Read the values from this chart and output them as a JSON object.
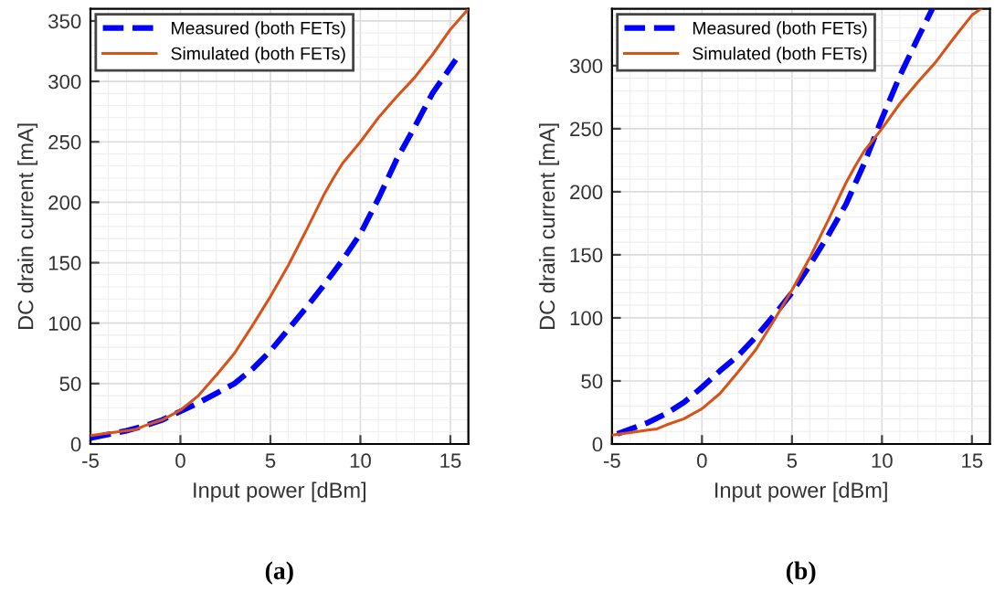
{
  "chart_data": [
    {
      "type": "line",
      "xlabel": "Input power [dBm]",
      "ylabel": "DC drain current [mA]",
      "annotations": [
        "(a)"
      ],
      "xlim": [
        -5,
        16
      ],
      "xticks": [
        -5,
        0,
        5,
        10,
        15
      ],
      "ylim": [
        0,
        360
      ],
      "yticks": [
        0,
        50,
        100,
        150,
        200,
        250,
        300,
        350
      ],
      "grid": true,
      "legend": "top left",
      "marker": "none",
      "series": [
        {
          "name": "Measured (both FETs)",
          "color": "#0000ff",
          "line_style": "dashed",
          "x": [
            -5,
            -4,
            -3,
            -2,
            -1,
            0,
            1,
            2,
            3,
            4,
            5,
            6,
            7,
            8,
            9,
            10,
            11,
            12,
            13,
            14,
            15.3
          ],
          "values": [
            5,
            8,
            11,
            15,
            20,
            27,
            34,
            42,
            50,
            62,
            77,
            95,
            113,
            132,
            152,
            174,
            203,
            235,
            262,
            290,
            318
          ]
        },
        {
          "name": "Simulated (both FETs)",
          "color": "#d95319",
          "line_style": "solid",
          "x": [
            -5,
            -4,
            -3,
            -2.5,
            -2,
            -1,
            0,
            1,
            2,
            3,
            4,
            5,
            6,
            7,
            8,
            8.5,
            9,
            10,
            11,
            12,
            13,
            14,
            15,
            16
          ],
          "values": [
            7,
            9,
            11,
            12,
            15,
            20,
            28,
            40,
            57,
            75,
            98,
            122,
            148,
            177,
            207,
            220,
            232,
            250,
            270,
            287,
            303,
            322,
            343,
            360
          ]
        }
      ]
    },
    {
      "type": "line",
      "xlabel": "Input power [dBm]",
      "ylabel": "DC drain current [mA]",
      "annotations": [
        "(b)"
      ],
      "xlim": [
        -5,
        16
      ],
      "xticks": [
        -5,
        0,
        5,
        10,
        15
      ],
      "ylim": [
        0,
        345
      ],
      "yticks": [
        0,
        50,
        100,
        150,
        200,
        250,
        300
      ],
      "grid": true,
      "legend": "top left",
      "marker": "none",
      "series": [
        {
          "name": "Measured (both FETs)",
          "color": "#0000ff",
          "line_style": "dashed",
          "x": [
            -4.7,
            -3,
            -2,
            -1,
            0,
            1,
            2,
            3,
            4,
            5,
            6,
            7,
            8,
            9,
            10,
            11,
            12,
            12.8
          ],
          "values": [
            8,
            17,
            24,
            33,
            45,
            58,
            70,
            85,
            102,
            120,
            142,
            165,
            190,
            222,
            258,
            292,
            322,
            345
          ]
        },
        {
          "name": "Simulated (both FETs)",
          "color": "#d95319",
          "line_style": "solid",
          "x": [
            -5,
            -4,
            -3,
            -2.5,
            -2,
            -1,
            0,
            1,
            2,
            3,
            4,
            5,
            6,
            7,
            8,
            8.5,
            9,
            10,
            11,
            12,
            13,
            14,
            15,
            15.5
          ],
          "values": [
            7,
            9,
            11,
            12,
            15,
            20,
            28,
            40,
            57,
            75,
            98,
            122,
            148,
            177,
            207,
            220,
            232,
            250,
            270,
            287,
            303,
            322,
            340,
            345
          ]
        }
      ]
    }
  ]
}
